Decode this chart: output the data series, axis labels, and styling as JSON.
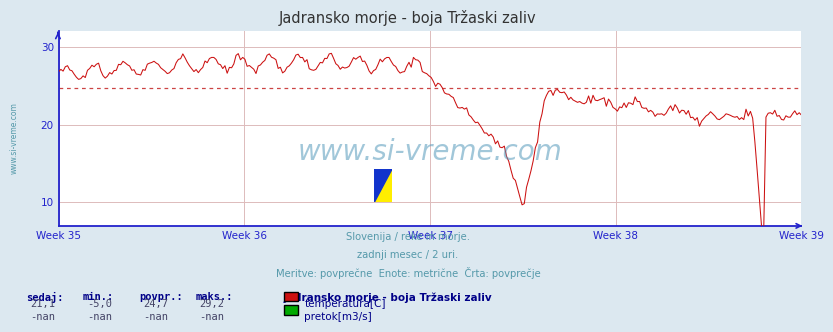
{
  "title": "Jadransko morje - boja Tržaski zaliv",
  "background_color": "#dce8f0",
  "plot_bg_color": "#ffffff",
  "grid_color": "#ddbbbb",
  "axis_color": "#2222cc",
  "title_color": "#333333",
  "text_color": "#5599aa",
  "weeks": [
    "Week 35",
    "Week 36",
    "Week 37",
    "Week 38",
    "Week 39"
  ],
  "ylim": [
    7,
    32
  ],
  "yticks": [
    10,
    20,
    30
  ],
  "avg_line_y": 24.7,
  "avg_line_color": "#cc4444",
  "line_color": "#cc1111",
  "subtitle_lines": [
    "Slovenija / reke in morje.",
    "zadnji mesec / 2 uri.",
    "Meritve: povprečne  Enote: metrične  Črta: povprečje"
  ],
  "footer_label_color": "#000088",
  "footer_value_color": "#444466",
  "sedaj": "21,1",
  "min_val": "-5,0",
  "povpr": "24,7",
  "maks": "29,2",
  "station_name": "Jadransko morje - boja Tržaski zaliv",
  "legend_temp_color": "#cc1111",
  "legend_flow_color": "#00aa00",
  "watermark": "www.si-vreme.com",
  "watermark_color": "#5599bb",
  "sidebar_text": "www.si-vreme.com"
}
